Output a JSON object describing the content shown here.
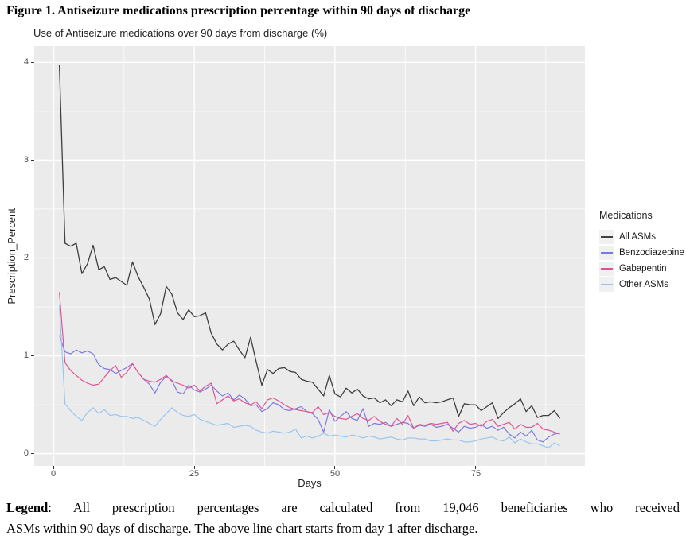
{
  "figure": {
    "title": "Figure 1. Antiseizure medications prescription percentage within 90 days of discharge",
    "caption_label": "Legend",
    "caption_line1": ": All prescription percentages are calculated from 19,046 beneficiaries who received",
    "caption_line2": "ASMs within 90 days of discharge. The above line chart starts from day 1 after discharge."
  },
  "chart_data": {
    "type": "line",
    "title": "Use of Antiseizure medications over 90 days from discharge (%)",
    "xlabel": "Days",
    "ylabel": "Prescription_Percent",
    "xlim": [
      1,
      90
    ],
    "ylim": [
      0,
      4
    ],
    "xticks": [
      "0",
      "25",
      "50",
      "75"
    ],
    "xtick_values": [
      0,
      25,
      50,
      75
    ],
    "yticks": [
      "0",
      "1",
      "2",
      "3",
      "4"
    ],
    "ytick_values": [
      0,
      1,
      2,
      3,
      4
    ],
    "x_minor_ticks": [
      12.5,
      37.5,
      62.5,
      87.5
    ],
    "y_minor_ticks": [
      0.5,
      1.5,
      2.5,
      3.5
    ],
    "grid": true,
    "legend_position": "right",
    "legend_title": "Medications",
    "panel_bg": "#EBEBEB",
    "grid_color": "#FFFFFF",
    "x": [
      1,
      2,
      3,
      4,
      5,
      6,
      7,
      8,
      9,
      10,
      11,
      12,
      13,
      14,
      15,
      16,
      17,
      18,
      19,
      20,
      21,
      22,
      23,
      24,
      25,
      26,
      27,
      28,
      29,
      30,
      31,
      32,
      33,
      34,
      35,
      36,
      37,
      38,
      39,
      40,
      41,
      42,
      43,
      44,
      45,
      46,
      47,
      48,
      49,
      50,
      51,
      52,
      53,
      54,
      55,
      56,
      57,
      58,
      59,
      60,
      61,
      62,
      63,
      64,
      65,
      66,
      67,
      68,
      69,
      70,
      71,
      72,
      73,
      74,
      75,
      76,
      77,
      78,
      79,
      80,
      81,
      82,
      83,
      84,
      85,
      86,
      87,
      88,
      89,
      90
    ],
    "series": [
      {
        "name": "All ASMs",
        "color": "#3f3f3f",
        "values": [
          3.97,
          2.15,
          2.12,
          2.15,
          1.84,
          1.94,
          2.13,
          1.88,
          1.91,
          1.78,
          1.8,
          1.76,
          1.72,
          1.96,
          1.81,
          1.7,
          1.58,
          1.32,
          1.43,
          1.71,
          1.63,
          1.44,
          1.37,
          1.47,
          1.4,
          1.41,
          1.44,
          1.23,
          1.12,
          1.06,
          1.12,
          1.15,
          1.06,
          0.98,
          1.19,
          0.94,
          0.7,
          0.86,
          0.82,
          0.87,
          0.88,
          0.84,
          0.83,
          0.76,
          0.74,
          0.73,
          0.66,
          0.59,
          0.8,
          0.61,
          0.58,
          0.67,
          0.62,
          0.66,
          0.59,
          0.56,
          0.57,
          0.52,
          0.55,
          0.49,
          0.55,
          0.53,
          0.64,
          0.49,
          0.58,
          0.52,
          0.53,
          0.52,
          0.53,
          0.55,
          0.57,
          0.38,
          0.51,
          0.5,
          0.5,
          0.44,
          0.48,
          0.52,
          0.36,
          0.42,
          0.47,
          0.51,
          0.56,
          0.43,
          0.49,
          0.37,
          0.39,
          0.39,
          0.44,
          0.36
        ]
      },
      {
        "name": "Benzodiazepine",
        "color": "#7977E1",
        "values": [
          1.21,
          1.04,
          1.02,
          1.06,
          1.03,
          1.05,
          1.02,
          0.91,
          0.87,
          0.86,
          0.82,
          0.85,
          0.88,
          0.92,
          0.83,
          0.76,
          0.71,
          0.62,
          0.73,
          0.79,
          0.75,
          0.63,
          0.61,
          0.7,
          0.65,
          0.63,
          0.66,
          0.7,
          0.64,
          0.59,
          0.62,
          0.55,
          0.6,
          0.56,
          0.49,
          0.5,
          0.43,
          0.46,
          0.52,
          0.5,
          0.45,
          0.44,
          0.46,
          0.48,
          0.43,
          0.41,
          0.35,
          0.22,
          0.45,
          0.33,
          0.38,
          0.43,
          0.36,
          0.34,
          0.46,
          0.28,
          0.31,
          0.3,
          0.32,
          0.28,
          0.3,
          0.32,
          0.31,
          0.26,
          0.29,
          0.28,
          0.3,
          0.27,
          0.28,
          0.3,
          0.26,
          0.22,
          0.28,
          0.26,
          0.27,
          0.3,
          0.26,
          0.28,
          0.24,
          0.27,
          0.2,
          0.16,
          0.22,
          0.18,
          0.24,
          0.14,
          0.12,
          0.17,
          0.2,
          0.21
        ]
      },
      {
        "name": "Gabapentin",
        "color": "#E05093",
        "values": [
          1.65,
          0.93,
          0.85,
          0.8,
          0.75,
          0.72,
          0.7,
          0.71,
          0.78,
          0.85,
          0.9,
          0.78,
          0.83,
          0.92,
          0.83,
          0.76,
          0.74,
          0.73,
          0.76,
          0.8,
          0.74,
          0.72,
          0.7,
          0.67,
          0.7,
          0.64,
          0.69,
          0.72,
          0.51,
          0.55,
          0.59,
          0.54,
          0.56,
          0.52,
          0.5,
          0.53,
          0.46,
          0.55,
          0.57,
          0.54,
          0.5,
          0.47,
          0.45,
          0.44,
          0.43,
          0.42,
          0.48,
          0.4,
          0.42,
          0.38,
          0.36,
          0.35,
          0.38,
          0.41,
          0.36,
          0.34,
          0.38,
          0.33,
          0.3,
          0.28,
          0.36,
          0.3,
          0.39,
          0.26,
          0.3,
          0.29,
          0.31,
          0.3,
          0.31,
          0.32,
          0.23,
          0.31,
          0.34,
          0.3,
          0.31,
          0.28,
          0.33,
          0.35,
          0.28,
          0.3,
          0.32,
          0.25,
          0.3,
          0.27,
          0.27,
          0.31,
          0.25,
          0.24,
          0.22,
          0.2
        ]
      },
      {
        "name": "Other ASMs",
        "color": "#95C5F0",
        "values": [
          1.52,
          0.51,
          0.44,
          0.38,
          0.34,
          0.42,
          0.47,
          0.41,
          0.45,
          0.39,
          0.4,
          0.38,
          0.38,
          0.36,
          0.37,
          0.34,
          0.31,
          0.28,
          0.35,
          0.41,
          0.47,
          0.42,
          0.39,
          0.38,
          0.4,
          0.35,
          0.33,
          0.31,
          0.29,
          0.3,
          0.31,
          0.27,
          0.28,
          0.29,
          0.28,
          0.24,
          0.22,
          0.21,
          0.23,
          0.22,
          0.21,
          0.22,
          0.25,
          0.16,
          0.18,
          0.16,
          0.18,
          0.21,
          0.18,
          0.19,
          0.18,
          0.17,
          0.19,
          0.18,
          0.16,
          0.18,
          0.17,
          0.15,
          0.16,
          0.17,
          0.15,
          0.14,
          0.16,
          0.16,
          0.15,
          0.15,
          0.13,
          0.13,
          0.14,
          0.15,
          0.14,
          0.14,
          0.12,
          0.12,
          0.13,
          0.15,
          0.16,
          0.17,
          0.14,
          0.13,
          0.17,
          0.11,
          0.15,
          0.12,
          0.1,
          0.1,
          0.08,
          0.06,
          0.11,
          0.08
        ]
      }
    ]
  }
}
